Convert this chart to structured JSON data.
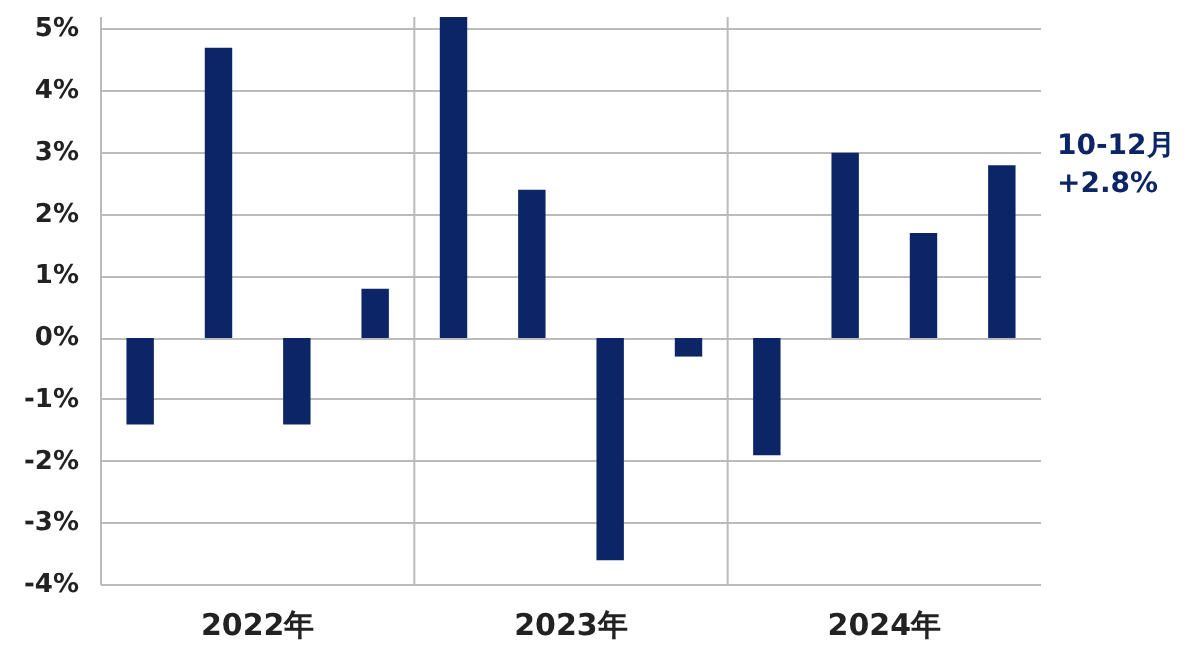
{
  "chart_data": {
    "type": "bar",
    "categories": [
      null,
      null,
      null,
      null,
      null,
      null,
      null,
      null,
      null,
      null,
      null,
      null
    ],
    "values": [
      -1.4,
      4.7,
      -1.4,
      0.8,
      5.2,
      2.4,
      -3.6,
      -0.3,
      -1.9,
      3.0,
      1.7,
      2.8
    ],
    "color": "#0c2566",
    "ylim": [
      -4,
      5.2
    ],
    "yticks": [
      {
        "value": -4,
        "label": "-4%"
      },
      {
        "value": -3,
        "label": "-3%"
      },
      {
        "value": -2,
        "label": "-2%"
      },
      {
        "value": -1,
        "label": "-1%"
      },
      {
        "value": 0,
        "label": "0%"
      },
      {
        "value": 1,
        "label": "1%"
      },
      {
        "value": 2,
        "label": "2%"
      },
      {
        "value": 3,
        "label": "3%"
      },
      {
        "value": 4,
        "label": "4%"
      },
      {
        "value": 5,
        "label": "5%"
      }
    ],
    "grid": "y",
    "annotations": [
      "2022年",
      "2023年",
      "2024年",
      "10-12月\n+2.8%"
    ]
  }
}
